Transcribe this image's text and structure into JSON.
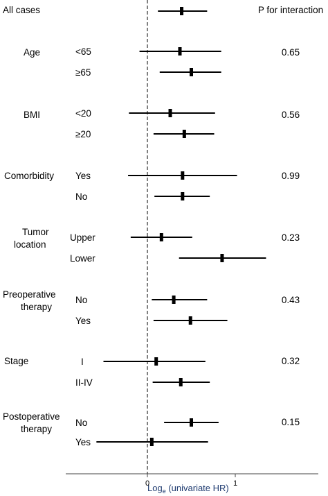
{
  "chart_data": {
    "type": "forest",
    "title": "",
    "xlabel": "Log",
    "xlabel_sub": "e",
    "xlabel_rest": " (univariate HR)",
    "ylabel": "",
    "xlim": [
      -0.95,
      1.48
    ],
    "xticks": [
      0,
      1
    ],
    "tick_labels": [
      "0",
      "1"
    ],
    "reference_line": 0,
    "grid": false,
    "pvalue_header": "P for interaction",
    "rows": [
      {
        "group": "All cases",
        "subgroup": "",
        "estimate": 0.39,
        "lower": 0.12,
        "upper": 0.68,
        "p": ""
      },
      {
        "group": "Age",
        "subgroup": "<65",
        "estimate": 0.37,
        "lower": -0.09,
        "upper": 0.84,
        "p": "0.65"
      },
      {
        "group": "",
        "subgroup": "≥65",
        "estimate": 0.5,
        "lower": 0.14,
        "upper": 0.84,
        "p": ""
      },
      {
        "group": "BMI",
        "subgroup": "<20",
        "estimate": 0.26,
        "lower": -0.21,
        "upper": 0.77,
        "p": "0.56"
      },
      {
        "group": "",
        "subgroup": "≥20",
        "estimate": 0.42,
        "lower": 0.07,
        "upper": 0.76,
        "p": ""
      },
      {
        "group": "Comorbidity",
        "subgroup": "Yes",
        "estimate": 0.4,
        "lower": -0.22,
        "upper": 1.02,
        "p": "0.99"
      },
      {
        "group": "",
        "subgroup": "No",
        "estimate": 0.4,
        "lower": 0.08,
        "upper": 0.71,
        "p": ""
      },
      {
        "group": "Tumor location",
        "group_lines": [
          "Tumor",
          "location"
        ],
        "subgroup": "Upper",
        "estimate": 0.16,
        "lower": -0.19,
        "upper": 0.51,
        "p": "0.23"
      },
      {
        "group": "",
        "subgroup": "Lower",
        "estimate": 0.85,
        "lower": 0.36,
        "upper": 1.35,
        "p": ""
      },
      {
        "group": "Preoperative therapy",
        "group_lines": [
          "Preoperative",
          "therapy"
        ],
        "subgroup": "No",
        "estimate": 0.3,
        "lower": 0.05,
        "upper": 0.68,
        "p": "0.43"
      },
      {
        "group": "",
        "subgroup": "Yes",
        "estimate": 0.49,
        "lower": 0.07,
        "upper": 0.91,
        "p": ""
      },
      {
        "group": "Stage",
        "subgroup": "I",
        "estimate": 0.1,
        "lower": -0.5,
        "upper": 0.66,
        "p": "0.32"
      },
      {
        "group": "",
        "subgroup": "II-IV",
        "estimate": 0.38,
        "lower": 0.06,
        "upper": 0.71,
        "p": ""
      },
      {
        "group": "Postoperative therapy",
        "group_lines": [
          "Postoperative",
          "therapy"
        ],
        "subgroup": "No",
        "estimate": 0.5,
        "lower": 0.19,
        "upper": 0.81,
        "p": "0.15"
      },
      {
        "group": "",
        "subgroup": "Yes",
        "estimate": 0.05,
        "lower": -0.58,
        "upper": 0.69,
        "p": ""
      }
    ]
  },
  "colors": {
    "marks": "#000000",
    "axis": "#444444",
    "axis_label": "#1f3b70"
  }
}
